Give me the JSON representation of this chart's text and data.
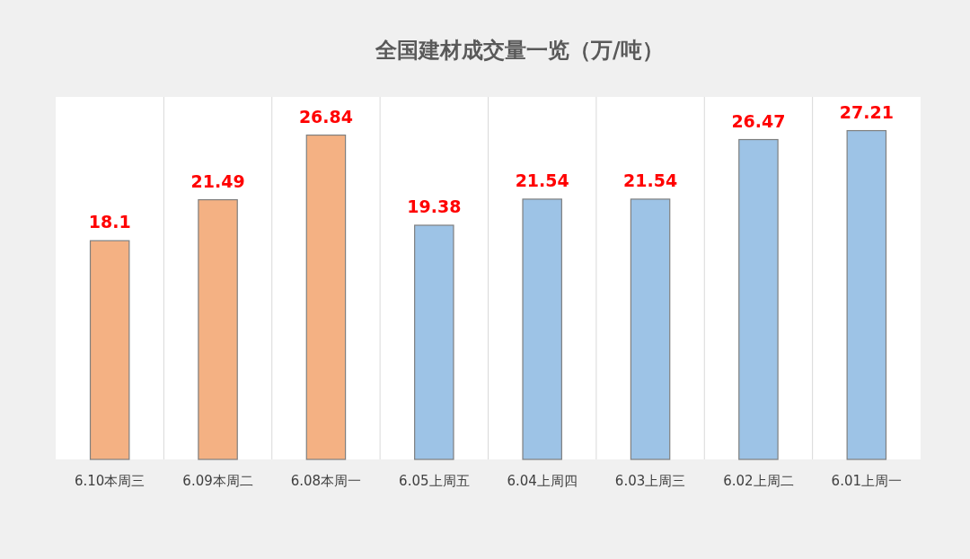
{
  "chart_data": {
    "type": "bar",
    "title": "全国建材成交量一览（万/吨）",
    "categories": [
      "6.10本周三",
      "6.09本周二",
      "6.08本周一",
      "6.05上周五",
      "6.04上周四",
      "6.03上周三",
      "6.02上周二",
      "6.01上周一"
    ],
    "values": [
      18.1,
      21.49,
      26.84,
      19.38,
      21.54,
      21.54,
      26.47,
      27.21
    ],
    "colors": [
      "#f4b183",
      "#f4b183",
      "#f4b183",
      "#9dc3e6",
      "#9dc3e6",
      "#9dc3e6",
      "#9dc3e6",
      "#9dc3e6"
    ],
    "ylim": [
      0,
      30
    ],
    "data_labels": true,
    "grid": "x"
  }
}
